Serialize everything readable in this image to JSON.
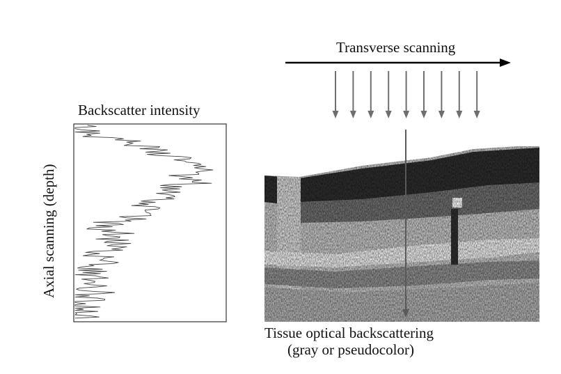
{
  "labels": {
    "transverse": "Transverse scanning",
    "backscatter": "Backscatter intensity",
    "axial": "Axial scanning (depth)",
    "tissue": "Tissue optical backscattering",
    "gray": "(gray or pseudocolor)"
  },
  "colors": {
    "main_arrow": "#000000",
    "down_arrows": "#6e6e6e",
    "depth_line": "#5a5a5a",
    "trace": "#444444",
    "frame": "#333333"
  },
  "scan_arrow_count": 9
}
